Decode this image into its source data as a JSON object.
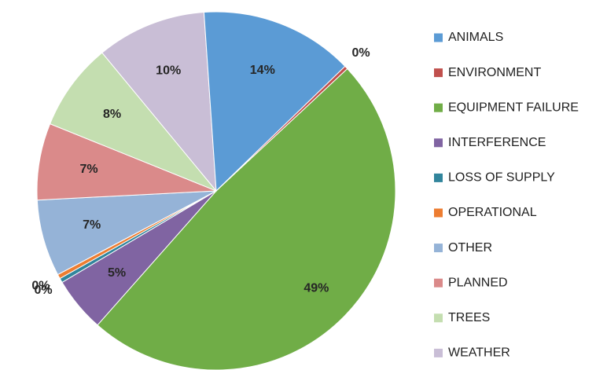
{
  "chart_data": {
    "type": "pie",
    "title": "",
    "legend_position": "right",
    "slices": [
      {
        "label": "EQUIPMENT FAILURE",
        "value": 49,
        "display": "49%",
        "color": "#70AD47"
      },
      {
        "label": "INTERFERENCE",
        "value": 5,
        "display": "5%",
        "color": "#8064A2"
      },
      {
        "label": "LOSS OF SUPPLY",
        "value": 0.4,
        "display": "0%",
        "color": "#31859C"
      },
      {
        "label": "OPERATIONAL",
        "value": 0.4,
        "display": "0%",
        "color": "#ED7D31"
      },
      {
        "label": "OTHER",
        "value": 7,
        "display": "7%",
        "color": "#95B3D7"
      },
      {
        "label": "PLANNED",
        "value": 7,
        "display": "7%",
        "color": "#DA8A8A"
      },
      {
        "label": "TREES",
        "value": 8,
        "display": "8%",
        "color": "#C4DEB0"
      },
      {
        "label": "WEATHER",
        "value": 10,
        "display": "10%",
        "color": "#C9BED6"
      },
      {
        "label": "ANIMALS",
        "value": 14,
        "display": "14%",
        "color": "#5B9BD5"
      },
      {
        "label": "ENVIRONMENT",
        "value": 0.3,
        "display": "0%",
        "color": "#C0504D"
      }
    ],
    "legend": [
      {
        "label": "ANIMALS",
        "color": "#5B9BD5"
      },
      {
        "label": "ENVIRONMENT",
        "color": "#C0504D"
      },
      {
        "label": "EQUIPMENT FAILURE",
        "color": "#70AD47"
      },
      {
        "label": "INTERFERENCE",
        "color": "#8064A2"
      },
      {
        "label": "LOSS OF SUPPLY",
        "color": "#31859C"
      },
      {
        "label": "OPERATIONAL",
        "color": "#ED7D31"
      },
      {
        "label": "OTHER",
        "color": "#95B3D7"
      },
      {
        "label": "PLANNED",
        "color": "#DA8A8A"
      },
      {
        "label": "TREES",
        "color": "#C4DEB0"
      },
      {
        "label": "WEATHER",
        "color": "#C9BED6"
      }
    ]
  }
}
